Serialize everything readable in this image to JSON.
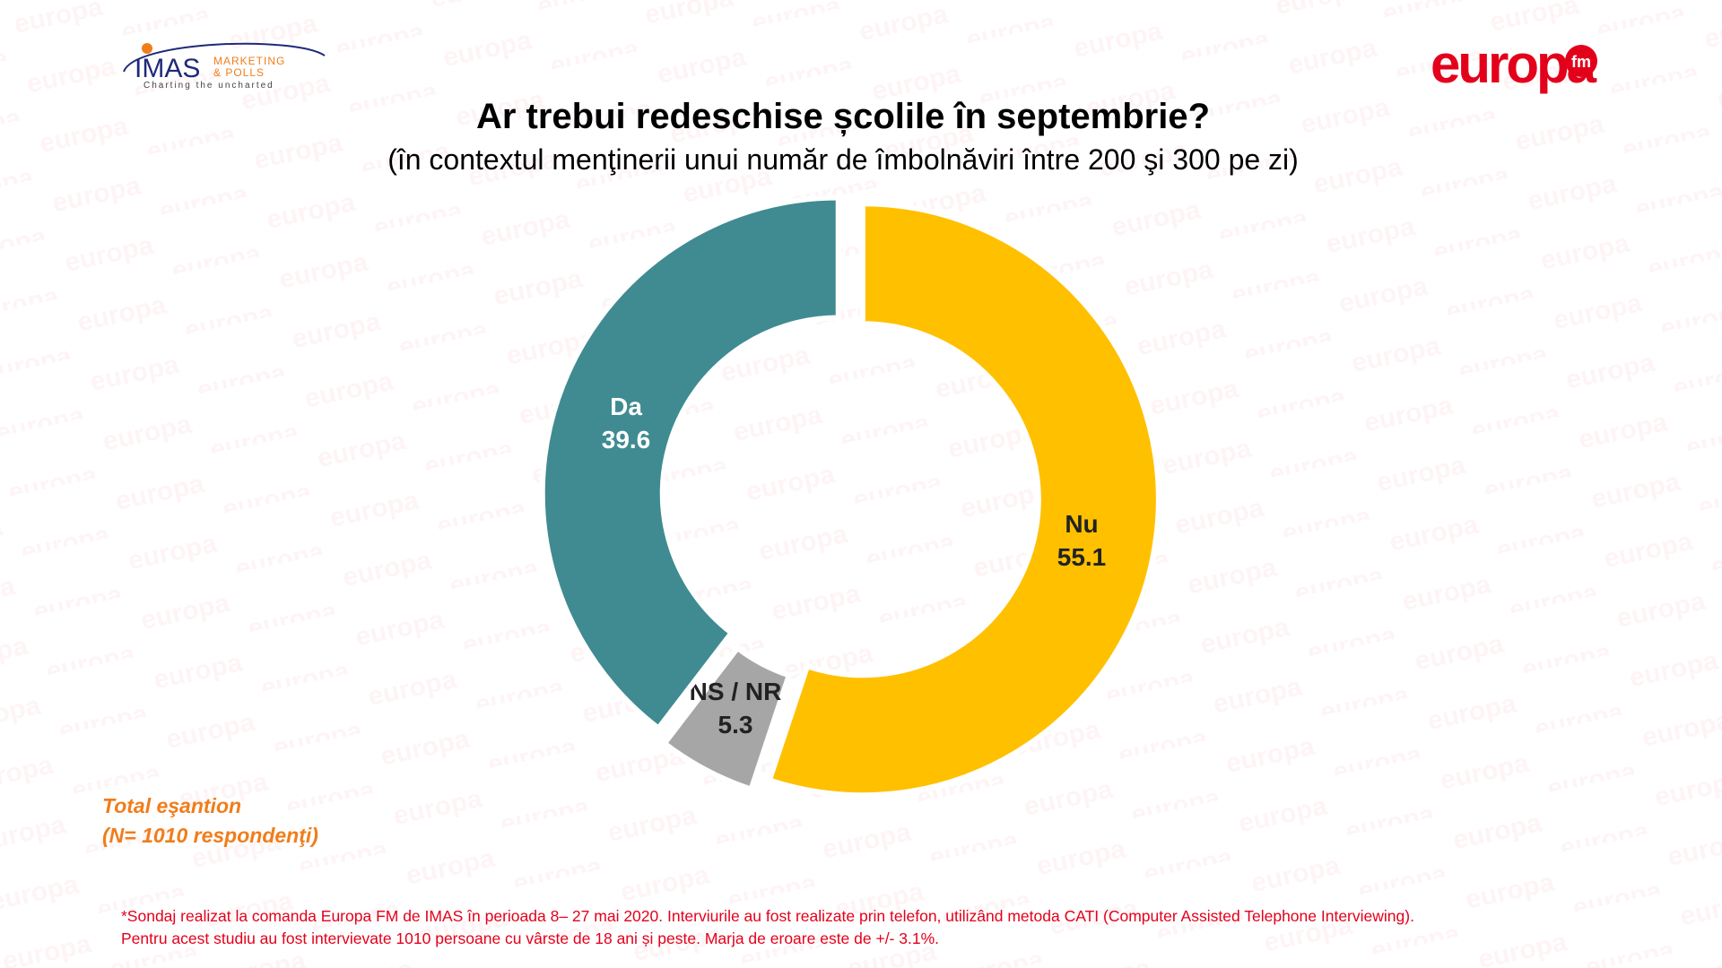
{
  "header": {
    "title": "Ar trebui redeschise școlile în septembrie?",
    "subtitle": "(în contextul menţinerii unui număr de îmbolnăviri între 200 şi 300 pe zi)"
  },
  "logos": {
    "imas": {
      "main": "IMAS",
      "line1": "MARKETING",
      "line2": "& POLLS",
      "tagline": "Charting the uncharted"
    },
    "europa": {
      "main": "europa",
      "sub": "fm"
    },
    "watermark": "europa"
  },
  "chart_data": {
    "type": "pie",
    "variant": "donut",
    "title": "Ar trebui redeschise școlile în septembrie?",
    "subtitle": "(în contextul menţinerii unui număr de îmbolnăviri între 200 şi 300 pe zi)",
    "slices": [
      {
        "label": "Nu",
        "value": 55.1,
        "color": "#ffc000"
      },
      {
        "label": "NS / NR",
        "value": 5.3,
        "color": "#a6a6a6"
      },
      {
        "label": "Da",
        "value": 39.6,
        "color": "#3f8b91"
      }
    ],
    "start_angle": "top",
    "direction": "clockwise"
  },
  "sample": {
    "line1": "Total eşantion",
    "line2": "(N= 1010 respondenţi)"
  },
  "footnote": {
    "line1": "*Sondaj realizat la comanda Europa FM de IMAS în perioada  8– 27 mai 2020. Interviurile au fost realizate prin telefon, utilizând metoda CATI (Computer Assisted Telephone Interviewing).",
    "line2": "Pentru acest studiu au fost intervievate 1010 persoane cu vârste de 18 ani și peste. Marja de eroare este de +/- 3.1%."
  },
  "colors": {
    "accent_orange": "#f07d1a",
    "footnote_red": "#e3001b",
    "brand_red": "#e3001b",
    "imas_blue": "#1f2a7a"
  }
}
